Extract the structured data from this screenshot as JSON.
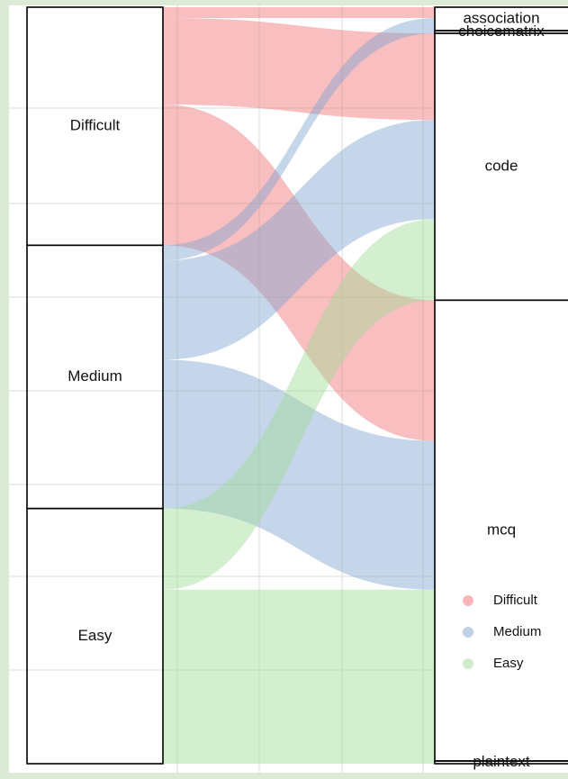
{
  "chart_data": {
    "type": "alluvial",
    "sources": [
      "Difficult",
      "Medium",
      "Easy"
    ],
    "targets": [
      "association",
      "choicematrix",
      "code",
      "mcq",
      "plaintext"
    ],
    "series": [
      {
        "name": "Difficult",
        "color": "#f06e73"
      },
      {
        "name": "Medium",
        "color": "#7fa3d0"
      },
      {
        "name": "Easy",
        "color": "#9fdc96"
      }
    ],
    "flows": [
      {
        "source": "Difficult",
        "target": "association",
        "value": 12
      },
      {
        "source": "Difficult",
        "target": "code",
        "value": 96
      },
      {
        "source": "Difficult",
        "target": "mcq",
        "value": 156
      },
      {
        "source": "Medium",
        "target": "association",
        "value": 14
      },
      {
        "source": "Medium",
        "target": "choicematrix",
        "value": 3
      },
      {
        "source": "Medium",
        "target": "code",
        "value": 110
      },
      {
        "source": "Medium",
        "target": "mcq",
        "value": 165
      },
      {
        "source": "Easy",
        "target": "code",
        "value": 90
      },
      {
        "source": "Easy",
        "target": "mcq",
        "value": 190
      },
      {
        "source": "Easy",
        "target": "plaintext",
        "value": 3
      }
    ],
    "legend": "bottom-right"
  }
}
